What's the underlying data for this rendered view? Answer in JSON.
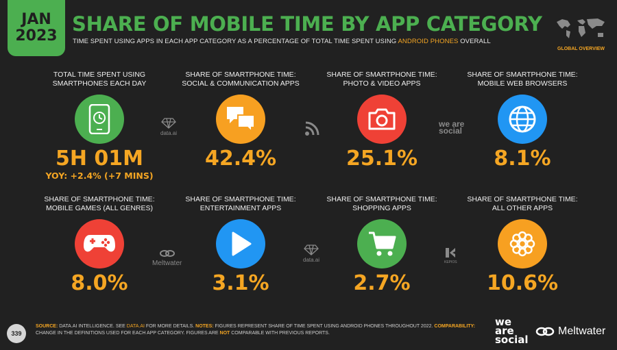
{
  "header": {
    "date_month": "JAN",
    "date_year": "2023",
    "title": "SHARE OF MOBILE TIME BY APP CATEGORY",
    "subtitle_part1": "TIME SPENT USING APPS IN EACH APP CATEGORY AS A PERCENTAGE OF TOTAL TIME SPENT USING ",
    "subtitle_highlight": "ANDROID PHONES",
    "subtitle_part2": " OVERALL",
    "overview_label": "GLOBAL OVERVIEW"
  },
  "cards": [
    {
      "line1": "TOTAL TIME SPENT USING",
      "line2": "SMARTPHONES EACH DAY",
      "value": "5H 01M",
      "sub": "YOY: +2.4% (+7 MINS)",
      "icon": "smartphone-clock-icon",
      "color": "#4caf50"
    },
    {
      "line1": "SHARE OF SMARTPHONE TIME:",
      "line2": "SOCIAL & COMMUNICATION APPS",
      "value": "42.4%",
      "icon": "chat-bubbles-icon",
      "color": "#f7a021"
    },
    {
      "line1": "SHARE OF SMARTPHONE TIME:",
      "line2": "PHOTO & VIDEO APPS",
      "value": "25.1%",
      "icon": "camera-icon",
      "color": "#ef4136"
    },
    {
      "line1": "SHARE OF SMARTPHONE TIME:",
      "line2": "MOBILE WEB BROWSERS",
      "value": "8.1%",
      "icon": "globe-icon",
      "color": "#2196f3"
    },
    {
      "line1": "SHARE OF SMARTPHONE TIME:",
      "line2": "MOBILE GAMES (ALL GENRES)",
      "value": "8.0%",
      "icon": "gamepad-icon",
      "color": "#ef4136"
    },
    {
      "line1": "SHARE OF SMARTPHONE TIME:",
      "line2": "ENTERTAINMENT APPS",
      "value": "3.1%",
      "icon": "play-icon",
      "color": "#2196f3"
    },
    {
      "line1": "SHARE OF SMARTPHONE TIME:",
      "line2": "SHOPPING APPS",
      "value": "2.7%",
      "icon": "shopping-cart-icon",
      "color": "#4caf50"
    },
    {
      "line1": "SHARE OF SMARTPHONE TIME:",
      "line2": "ALL OTHER APPS",
      "value": "10.6%",
      "icon": "circles-cluster-icon",
      "color": "#f7a021"
    }
  ],
  "watermarks": {
    "dataai": "data.ai",
    "wearesocial": "we are social",
    "meltwater": "Meltwater",
    "kepios": "KEPIOS"
  },
  "footer": {
    "source_label": "SOURCE:",
    "source_text1": " DATA.AI INTELLIGENCE. SEE ",
    "source_link": "DATA.AI",
    "source_text2": " FOR MORE DETAILS. ",
    "notes_label": "NOTES:",
    "notes_text": " FIGURES REPRESENT SHARE OF TIME SPENT USING ANDROID PHONES THROUGHOUT 2022. ",
    "comparability_label": "COMPARABILITY:",
    "comparability_text1": " CHANGE IN THE DEFINITIONS USED FOR EACH APP CATEGORY. FIGURES ARE ",
    "comparability_not": "NOT",
    "comparability_text2": " COMPARABLE WITH PREVIOUS REPORTS.",
    "page_number": "339"
  },
  "logos": {
    "was_line1": "we",
    "was_line2": "are",
    "was_line3": "social",
    "meltwater": "Meltwater"
  }
}
